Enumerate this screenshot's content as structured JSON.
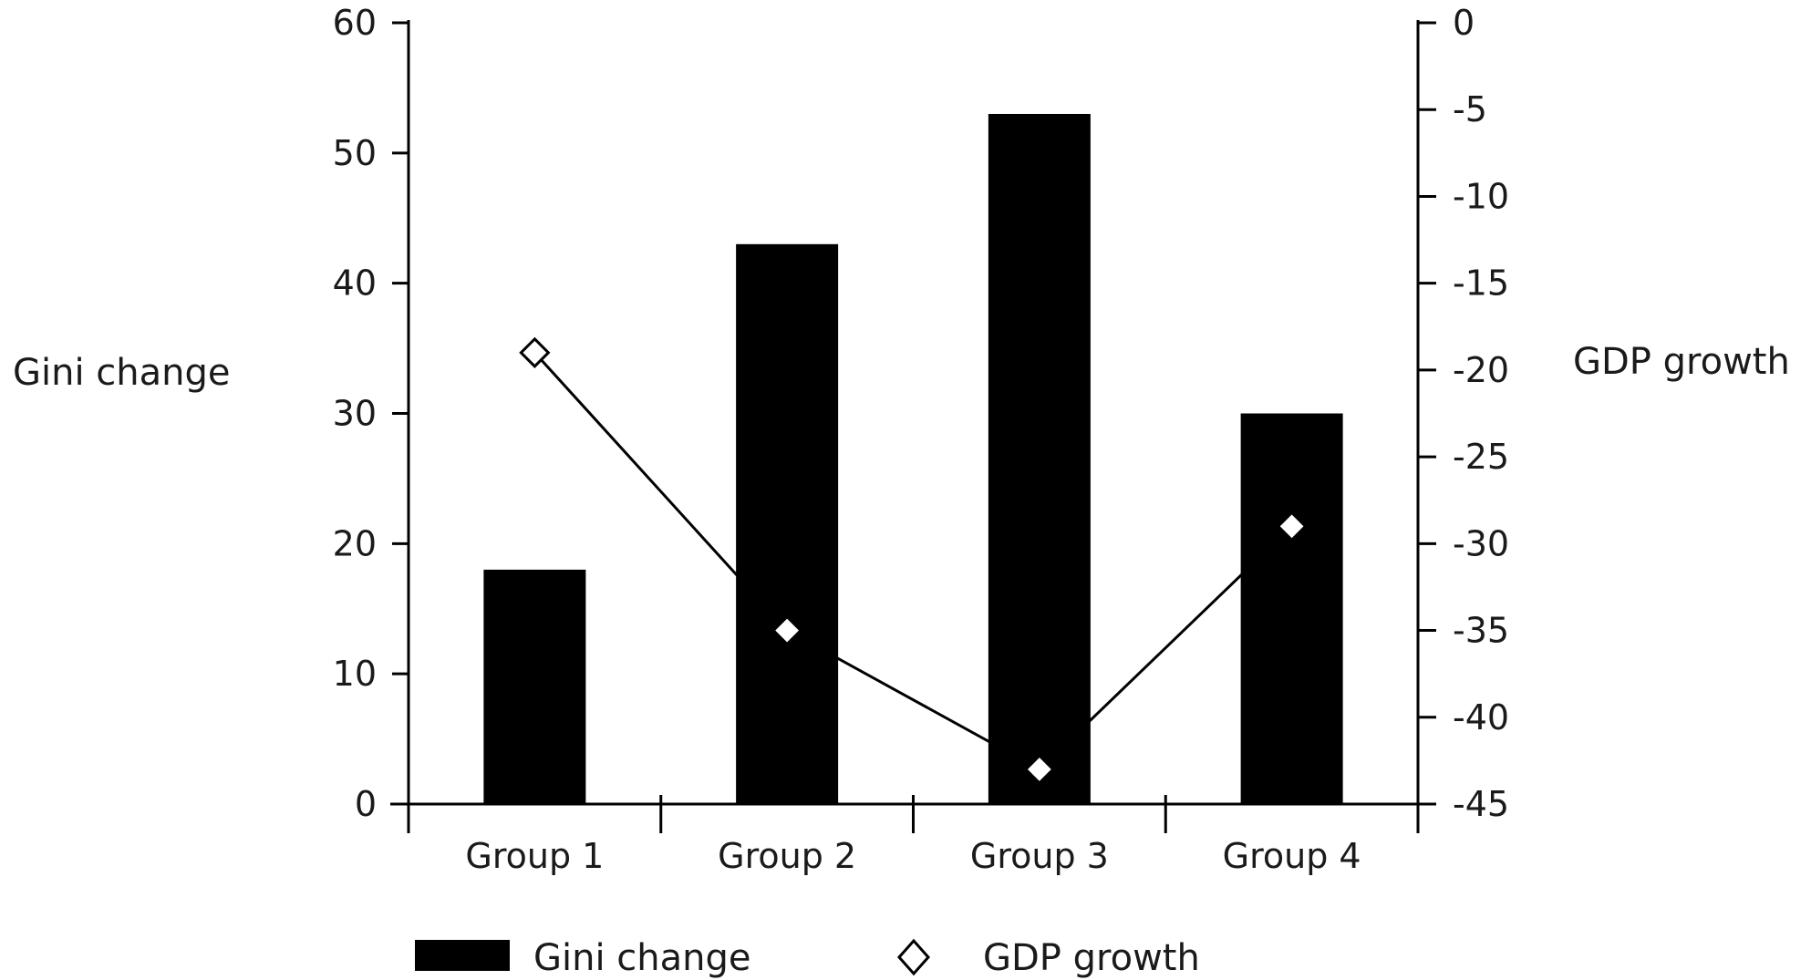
{
  "chart_data": {
    "type": "bar",
    "title": "",
    "categories": [
      "Group 1",
      "Group 2",
      "Group 3",
      "Group 4"
    ],
    "series": [
      {
        "name": "Gini change",
        "type": "bar",
        "axis": "left",
        "values": [
          18,
          43,
          53,
          30
        ],
        "color": "#000000"
      },
      {
        "name": "GDP growth",
        "type": "line",
        "axis": "right",
        "values": [
          -19,
          -35,
          -43,
          -29
        ],
        "color": "#000000",
        "marker": "diamond-open"
      }
    ],
    "y_left": {
      "label": "Gini change",
      "range": [
        0,
        60
      ],
      "ticks": [
        0,
        10,
        20,
        30,
        40,
        50,
        60
      ]
    },
    "y_right": {
      "label": "GDP growth",
      "range": [
        -45,
        0
      ],
      "ticks": [
        0,
        -5,
        -10,
        -15,
        -20,
        -25,
        -30,
        -35,
        -40,
        -45
      ]
    },
    "grid": false,
    "legend": {
      "position": "bottom-left",
      "entries": [
        "Gini change",
        "GDP growth"
      ]
    }
  }
}
